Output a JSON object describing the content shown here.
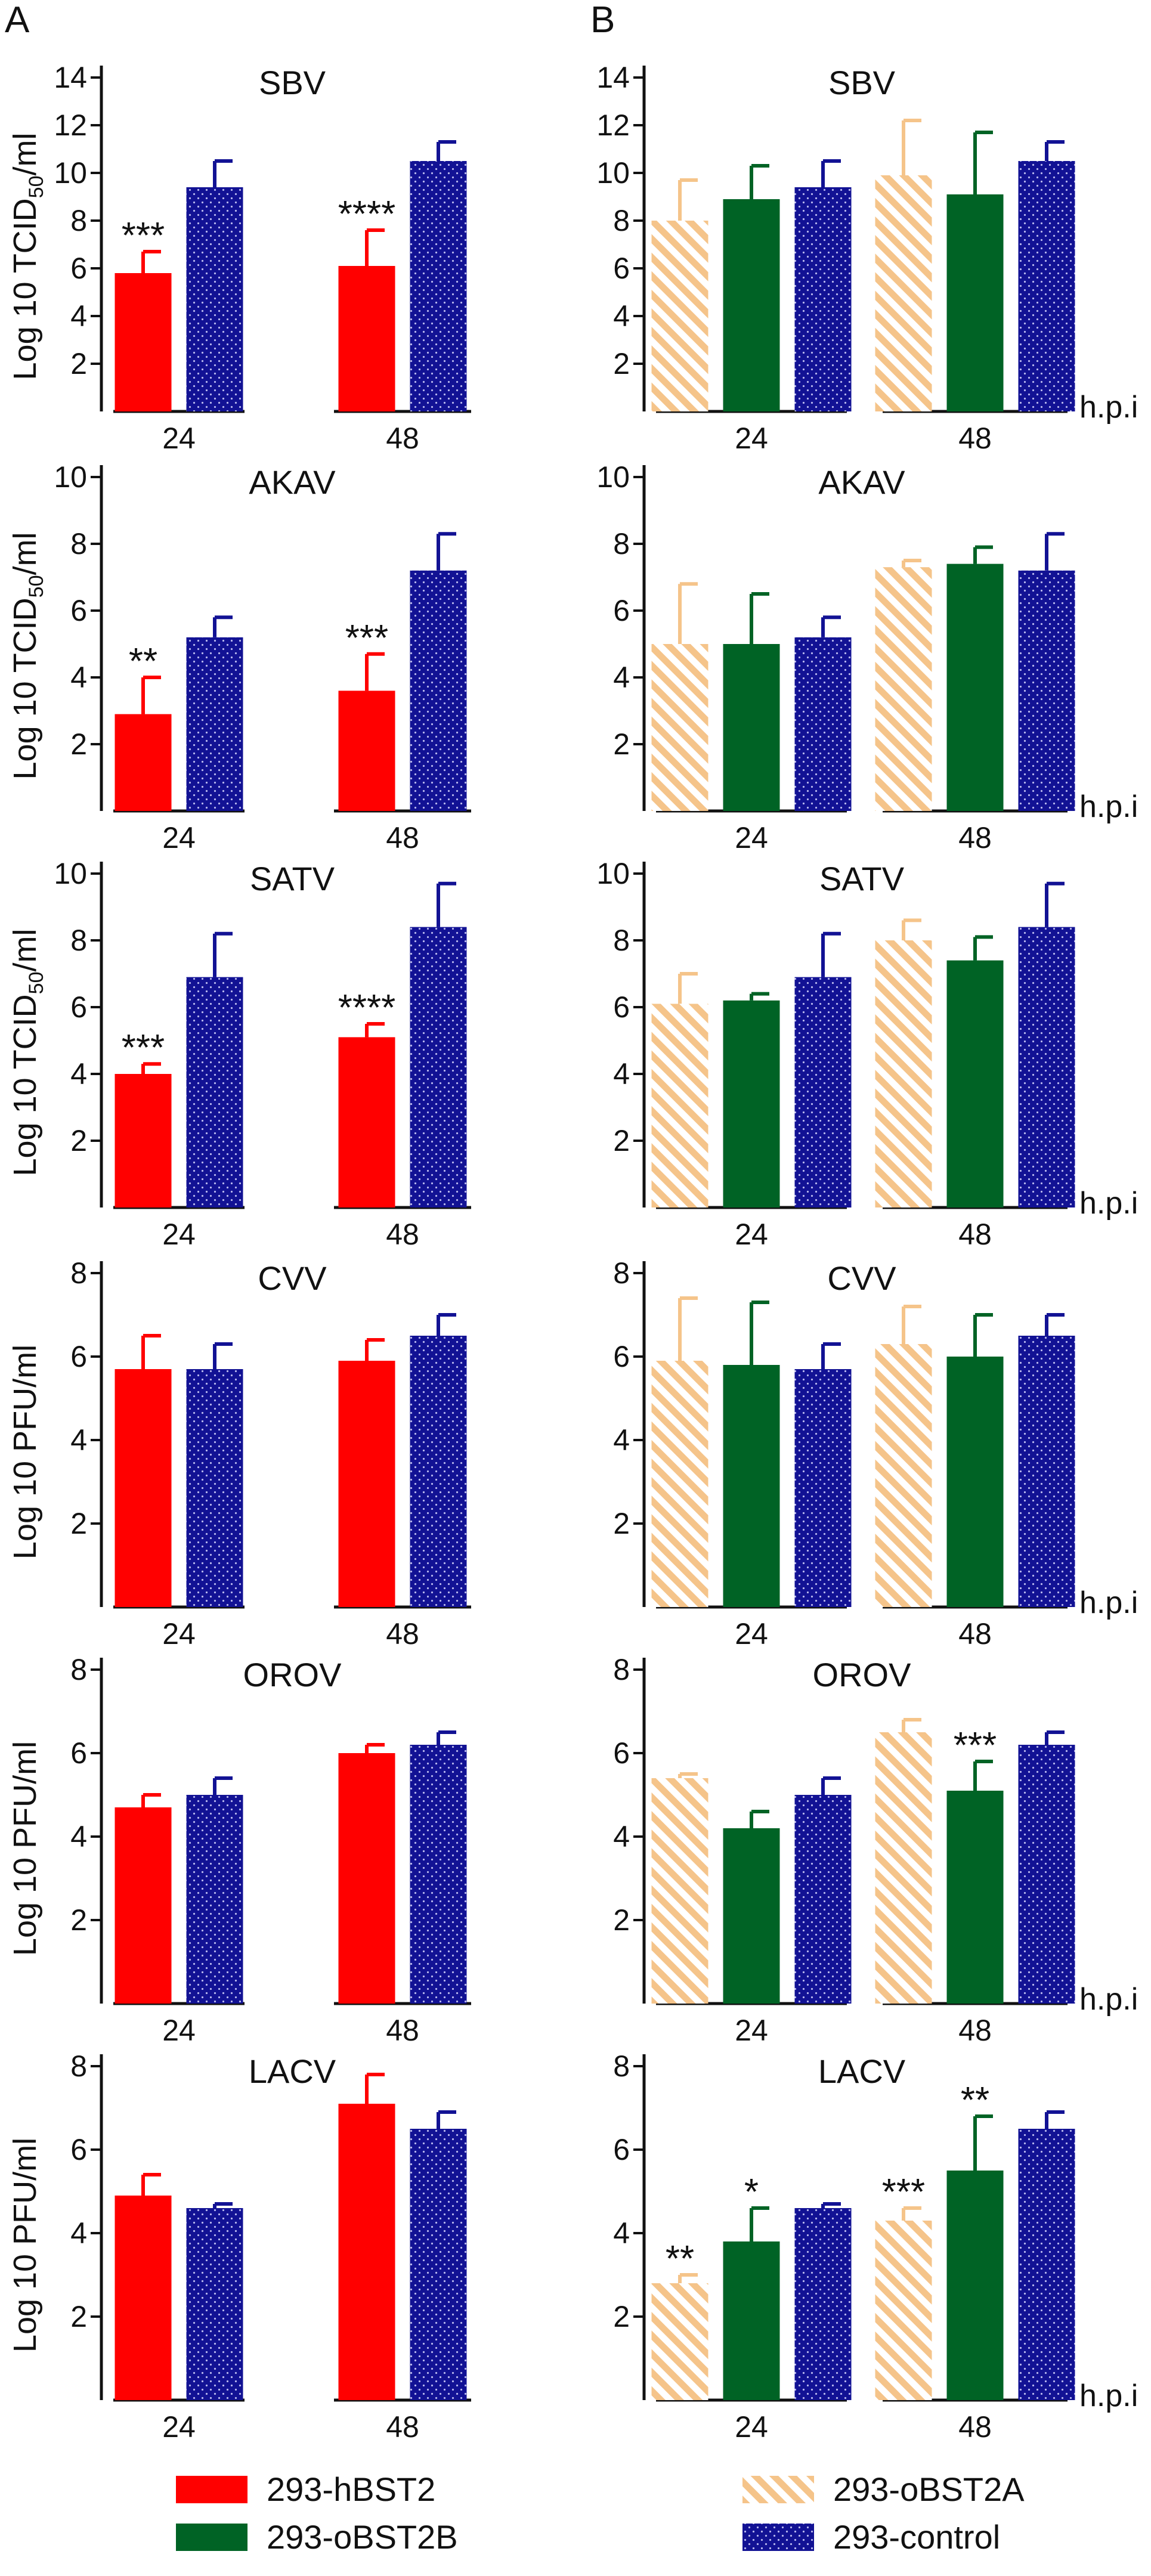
{
  "panel_labels": [
    "A",
    "B"
  ],
  "x_unit_label": "h.p.i",
  "colors": {
    "293-hBST2": "#ff0000",
    "293-oBST2A": "#f5c48a",
    "293-oBST2B": "#006325",
    "293-control": "#121294"
  },
  "legend": [
    {
      "name": "293-hBST2",
      "pattern": "solid"
    },
    {
      "name": "293-oBST2A",
      "pattern": "hatched"
    },
    {
      "name": "293-oBST2B",
      "pattern": "solid"
    },
    {
      "name": "293-control",
      "pattern": "dotted"
    }
  ],
  "chart_data": [
    {
      "panel": "A",
      "type": "bar",
      "title": "SBV",
      "ylabel": "Log 10 TCID50/ml",
      "xlabel": "",
      "ylim": [
        0,
        14
      ],
      "yticks": [
        2,
        4,
        6,
        8,
        10,
        12,
        14
      ],
      "categories": [
        "24",
        "48"
      ],
      "hpi_label": false,
      "series": [
        {
          "name": "293-hBST2",
          "values": [
            5.8,
            6.1
          ],
          "errors": [
            0.9,
            1.5
          ],
          "stars": [
            "***",
            "****"
          ]
        },
        {
          "name": "293-control",
          "values": [
            9.4,
            10.5
          ],
          "errors": [
            1.1,
            0.8
          ],
          "stars": [
            "",
            ""
          ]
        }
      ]
    },
    {
      "panel": "B",
      "type": "bar",
      "title": "SBV",
      "ylabel": "",
      "xlabel": "h.p.i",
      "ylim": [
        0,
        14
      ],
      "yticks": [
        2,
        4,
        6,
        8,
        10,
        12,
        14
      ],
      "categories": [
        "24",
        "48"
      ],
      "hpi_label": true,
      "series": [
        {
          "name": "293-oBST2A",
          "values": [
            8.0,
            9.9
          ],
          "errors": [
            1.7,
            2.3
          ],
          "stars": [
            "",
            ""
          ]
        },
        {
          "name": "293-oBST2B",
          "values": [
            8.9,
            9.1
          ],
          "errors": [
            1.4,
            2.6
          ],
          "stars": [
            "",
            ""
          ]
        },
        {
          "name": "293-control",
          "values": [
            9.4,
            10.5
          ],
          "errors": [
            1.1,
            0.8
          ],
          "stars": [
            "",
            ""
          ]
        }
      ]
    },
    {
      "panel": "A",
      "type": "bar",
      "title": "AKAV",
      "ylabel": "Log 10 TCID50/ml",
      "xlabel": "",
      "ylim": [
        0,
        10
      ],
      "yticks": [
        2,
        4,
        6,
        8,
        10
      ],
      "categories": [
        "24",
        "48"
      ],
      "hpi_label": false,
      "series": [
        {
          "name": "293-hBST2",
          "values": [
            2.9,
            3.6
          ],
          "errors": [
            1.1,
            1.1
          ],
          "stars": [
            "**",
            "***"
          ]
        },
        {
          "name": "293-control",
          "values": [
            5.2,
            7.2
          ],
          "errors": [
            0.6,
            1.1
          ],
          "stars": [
            "",
            ""
          ]
        }
      ]
    },
    {
      "panel": "B",
      "type": "bar",
      "title": "AKAV",
      "ylabel": "",
      "xlabel": "h.p.i",
      "ylim": [
        0,
        10
      ],
      "yticks": [
        2,
        4,
        6,
        8,
        10
      ],
      "categories": [
        "24",
        "48"
      ],
      "hpi_label": true,
      "series": [
        {
          "name": "293-oBST2A",
          "values": [
            5.0,
            7.3
          ],
          "errors": [
            1.8,
            0.2
          ],
          "stars": [
            "",
            ""
          ]
        },
        {
          "name": "293-oBST2B",
          "values": [
            5.0,
            7.4
          ],
          "errors": [
            1.5,
            0.5
          ],
          "stars": [
            "",
            ""
          ]
        },
        {
          "name": "293-control",
          "values": [
            5.2,
            7.2
          ],
          "errors": [
            0.6,
            1.1
          ],
          "stars": [
            "",
            ""
          ]
        }
      ]
    },
    {
      "panel": "A",
      "type": "bar",
      "title": "SATV",
      "ylabel": "Log 10 TCID50/ml",
      "xlabel": "",
      "ylim": [
        0,
        10
      ],
      "yticks": [
        2,
        4,
        6,
        8,
        10
      ],
      "categories": [
        "24",
        "48"
      ],
      "hpi_label": false,
      "series": [
        {
          "name": "293-hBST2",
          "values": [
            4.0,
            5.1
          ],
          "errors": [
            0.3,
            0.4
          ],
          "stars": [
            "***",
            "****"
          ]
        },
        {
          "name": "293-control",
          "values": [
            6.9,
            8.4
          ],
          "errors": [
            1.3,
            1.3
          ],
          "stars": [
            "",
            ""
          ]
        }
      ]
    },
    {
      "panel": "B",
      "type": "bar",
      "title": "SATV",
      "ylabel": "",
      "xlabel": "h.p.i",
      "ylim": [
        0,
        10
      ],
      "yticks": [
        2,
        4,
        6,
        8,
        10
      ],
      "categories": [
        "24",
        "48"
      ],
      "hpi_label": true,
      "series": [
        {
          "name": "293-oBST2A",
          "values": [
            6.1,
            8.0
          ],
          "errors": [
            0.9,
            0.6
          ],
          "stars": [
            "",
            ""
          ]
        },
        {
          "name": "293-oBST2B",
          "values": [
            6.2,
            7.4
          ],
          "errors": [
            0.2,
            0.7
          ],
          "stars": [
            "",
            ""
          ]
        },
        {
          "name": "293-control",
          "values": [
            6.9,
            8.4
          ],
          "errors": [
            1.3,
            1.3
          ],
          "stars": [
            "",
            ""
          ]
        }
      ]
    },
    {
      "panel": "A",
      "type": "bar",
      "title": "CVV",
      "ylabel": "Log 10 PFU/ml",
      "xlabel": "",
      "ylim": [
        0,
        8
      ],
      "yticks": [
        2,
        4,
        6,
        8
      ],
      "categories": [
        "24",
        "48"
      ],
      "hpi_label": false,
      "series": [
        {
          "name": "293-hBST2",
          "values": [
            5.7,
            5.9
          ],
          "errors": [
            0.8,
            0.5
          ],
          "stars": [
            "",
            ""
          ]
        },
        {
          "name": "293-control",
          "values": [
            5.7,
            6.5
          ],
          "errors": [
            0.6,
            0.5
          ],
          "stars": [
            "",
            ""
          ]
        }
      ]
    },
    {
      "panel": "B",
      "type": "bar",
      "title": "CVV",
      "ylabel": "",
      "xlabel": "h.p.i",
      "ylim": [
        0,
        8
      ],
      "yticks": [
        2,
        4,
        6,
        8
      ],
      "categories": [
        "24",
        "48"
      ],
      "hpi_label": true,
      "series": [
        {
          "name": "293-oBST2A",
          "values": [
            5.9,
            6.3
          ],
          "errors": [
            1.5,
            0.9
          ],
          "stars": [
            "",
            ""
          ]
        },
        {
          "name": "293-oBST2B",
          "values": [
            5.8,
            6.0
          ],
          "errors": [
            1.5,
            1.0
          ],
          "stars": [
            "",
            ""
          ]
        },
        {
          "name": "293-control",
          "values": [
            5.7,
            6.5
          ],
          "errors": [
            0.6,
            0.5
          ],
          "stars": [
            "",
            ""
          ]
        }
      ]
    },
    {
      "panel": "A",
      "type": "bar",
      "title": "OROV",
      "ylabel": "Log 10 PFU/ml",
      "xlabel": "",
      "ylim": [
        0,
        8
      ],
      "yticks": [
        2,
        4,
        6,
        8
      ],
      "categories": [
        "24",
        "48"
      ],
      "hpi_label": false,
      "series": [
        {
          "name": "293-hBST2",
          "values": [
            4.7,
            6.0
          ],
          "errors": [
            0.3,
            0.2
          ],
          "stars": [
            "",
            ""
          ]
        },
        {
          "name": "293-control",
          "values": [
            5.0,
            6.2
          ],
          "errors": [
            0.4,
            0.3
          ],
          "stars": [
            "",
            ""
          ]
        }
      ]
    },
    {
      "panel": "B",
      "type": "bar",
      "title": "OROV",
      "ylabel": "",
      "xlabel": "h.p.i",
      "ylim": [
        0,
        8
      ],
      "yticks": [
        2,
        4,
        6,
        8
      ],
      "categories": [
        "24",
        "48"
      ],
      "hpi_label": true,
      "series": [
        {
          "name": "293-oBST2A",
          "values": [
            5.4,
            6.5
          ],
          "errors": [
            0.1,
            0.3
          ],
          "stars": [
            "",
            ""
          ]
        },
        {
          "name": "293-oBST2B",
          "values": [
            4.2,
            5.1
          ],
          "errors": [
            0.4,
            0.7
          ],
          "stars": [
            "",
            "***"
          ]
        },
        {
          "name": "293-control",
          "values": [
            5.0,
            6.2
          ],
          "errors": [
            0.4,
            0.3
          ],
          "stars": [
            "",
            ""
          ]
        }
      ]
    },
    {
      "panel": "A",
      "type": "bar",
      "title": "LACV",
      "ylabel": "Log 10 PFU/ml",
      "xlabel": "",
      "ylim": [
        0,
        8
      ],
      "yticks": [
        2,
        4,
        6,
        8
      ],
      "categories": [
        "24",
        "48"
      ],
      "hpi_label": false,
      "series": [
        {
          "name": "293-hBST2",
          "values": [
            4.9,
            7.1
          ],
          "errors": [
            0.5,
            0.7
          ],
          "stars": [
            "",
            ""
          ]
        },
        {
          "name": "293-control",
          "values": [
            4.6,
            6.5
          ],
          "errors": [
            0.1,
            0.4
          ],
          "stars": [
            "",
            ""
          ]
        }
      ]
    },
    {
      "panel": "B",
      "type": "bar",
      "title": "LACV",
      "ylabel": "",
      "xlabel": "h.p.i",
      "ylim": [
        0,
        8
      ],
      "yticks": [
        2,
        4,
        6,
        8
      ],
      "categories": [
        "24",
        "48"
      ],
      "hpi_label": true,
      "series": [
        {
          "name": "293-oBST2A",
          "values": [
            2.8,
            4.3
          ],
          "errors": [
            0.2,
            0.3
          ],
          "stars": [
            "**",
            "***"
          ]
        },
        {
          "name": "293-oBST2B",
          "values": [
            3.8,
            5.5
          ],
          "errors": [
            0.8,
            1.3
          ],
          "stars": [
            "*",
            "**"
          ]
        },
        {
          "name": "293-control",
          "values": [
            4.6,
            6.5
          ],
          "errors": [
            0.1,
            0.4
          ],
          "stars": [
            "",
            ""
          ]
        }
      ]
    }
  ]
}
